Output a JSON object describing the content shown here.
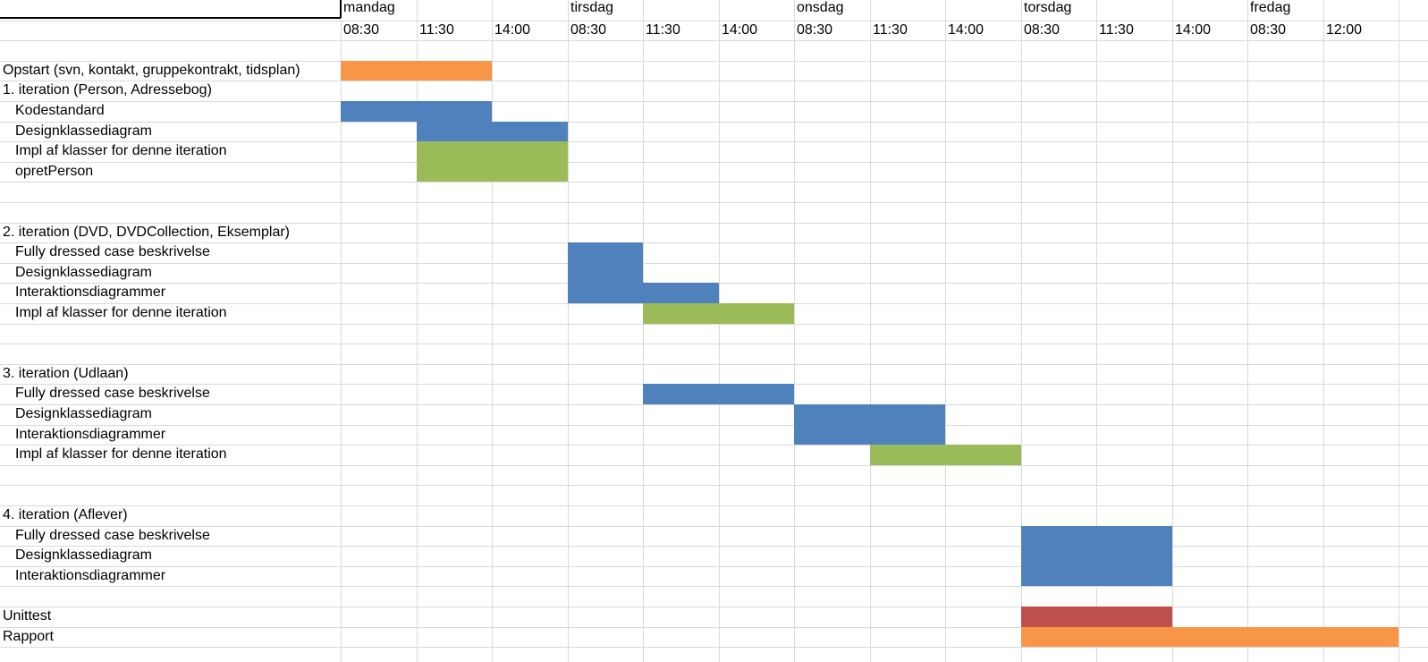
{
  "colors": {
    "blue": "#4f81bd",
    "green": "#9bbb59",
    "orange": "#f79646",
    "red": "#c0504d",
    "gridline": "#d9d9d9"
  },
  "days": [
    {
      "label": "mandag",
      "col": 0
    },
    {
      "label": "tirsdag",
      "col": 3
    },
    {
      "label": "onsdag",
      "col": 6
    },
    {
      "label": "torsdag",
      "col": 9
    },
    {
      "label": "fredag",
      "col": 12
    }
  ],
  "times": [
    "08:30",
    "11:30",
    "14:00",
    "08:30",
    "11:30",
    "14:00",
    "08:30",
    "11:30",
    "14:00",
    "08:30",
    "11:30",
    "14:00",
    "08:30",
    "12:00"
  ],
  "tasks": [
    {
      "row": 3,
      "label": "Opstart (svn, kontakt, gruppekontrakt, tidsplan)",
      "indent": false
    },
    {
      "row": 4,
      "label": "1. iteration (Person, Adressebog)",
      "indent": false
    },
    {
      "row": 5,
      "label": "Kodestandard",
      "indent": true
    },
    {
      "row": 6,
      "label": "Designklassediagram",
      "indent": true
    },
    {
      "row": 7,
      "label": "Impl af klasser for denne iteration",
      "indent": true
    },
    {
      "row": 8,
      "label": "opretPerson",
      "indent": true
    },
    {
      "row": 11,
      "label": "2. iteration (DVD, DVDCollection, Eksemplar)",
      "indent": false
    },
    {
      "row": 12,
      "label": "Fully dressed case beskrivelse",
      "indent": true
    },
    {
      "row": 13,
      "label": "Designklassediagram",
      "indent": true
    },
    {
      "row": 14,
      "label": "Interaktionsdiagrammer",
      "indent": true
    },
    {
      "row": 15,
      "label": "Impl af klasser for denne iteration",
      "indent": true
    },
    {
      "row": 18,
      "label": "3. iteration (Udlaan)",
      "indent": false
    },
    {
      "row": 19,
      "label": "Fully dressed case beskrivelse",
      "indent": true
    },
    {
      "row": 20,
      "label": "Designklassediagram",
      "indent": true
    },
    {
      "row": 21,
      "label": "Interaktionsdiagrammer",
      "indent": true
    },
    {
      "row": 22,
      "label": "Impl af klasser for denne iteration",
      "indent": true
    },
    {
      "row": 25,
      "label": "4. iteration (Aflever)",
      "indent": false
    },
    {
      "row": 26,
      "label": "Fully dressed case beskrivelse",
      "indent": true
    },
    {
      "row": 27,
      "label": "Designklassediagram",
      "indent": true
    },
    {
      "row": 28,
      "label": "Interaktionsdiagrammer",
      "indent": true
    },
    {
      "row": 30,
      "label": "Unittest",
      "indent": false
    },
    {
      "row": 31,
      "label": "Rapport",
      "indent": false
    }
  ],
  "bars": [
    {
      "name": "opstart-bar",
      "row": 3,
      "rowSpan": 1,
      "col": 0,
      "colSpan": 2,
      "color": "orange"
    },
    {
      "name": "kodestandard-bar",
      "row": 5,
      "rowSpan": 1,
      "col": 0,
      "colSpan": 2,
      "color": "blue"
    },
    {
      "name": "designklassediagram-1-bar",
      "row": 6,
      "rowSpan": 1,
      "col": 1,
      "colSpan": 2,
      "color": "blue"
    },
    {
      "name": "impl-1-bar",
      "row": 7,
      "rowSpan": 2,
      "col": 1,
      "colSpan": 2,
      "color": "green"
    },
    {
      "name": "fully-dressed-2-bar",
      "row": 12,
      "rowSpan": 3,
      "col": 3,
      "colSpan": 1,
      "color": "blue"
    },
    {
      "name": "interaktion-2-bar",
      "row": 14,
      "rowSpan": 1,
      "col": 4,
      "colSpan": 1,
      "color": "blue"
    },
    {
      "name": "impl-2-bar",
      "row": 15,
      "rowSpan": 1,
      "col": 4,
      "colSpan": 2,
      "color": "green"
    },
    {
      "name": "fully-dressed-3-bar",
      "row": 19,
      "rowSpan": 1,
      "col": 4,
      "colSpan": 2,
      "color": "blue"
    },
    {
      "name": "design-interaktion-3-bar",
      "row": 20,
      "rowSpan": 2,
      "col": 6,
      "colSpan": 2,
      "color": "blue"
    },
    {
      "name": "impl-3-bar",
      "row": 22,
      "rowSpan": 1,
      "col": 7,
      "colSpan": 2,
      "color": "green"
    },
    {
      "name": "iteration-4-bar",
      "row": 26,
      "rowSpan": 3,
      "col": 9,
      "colSpan": 2,
      "color": "blue"
    },
    {
      "name": "unittest-bar",
      "row": 30,
      "rowSpan": 1,
      "col": 9,
      "colSpan": 2,
      "color": "red"
    },
    {
      "name": "rapport-bar",
      "row": 31,
      "rowSpan": 1,
      "col": 9,
      "colSpan": 5,
      "color": "orange"
    }
  ]
}
